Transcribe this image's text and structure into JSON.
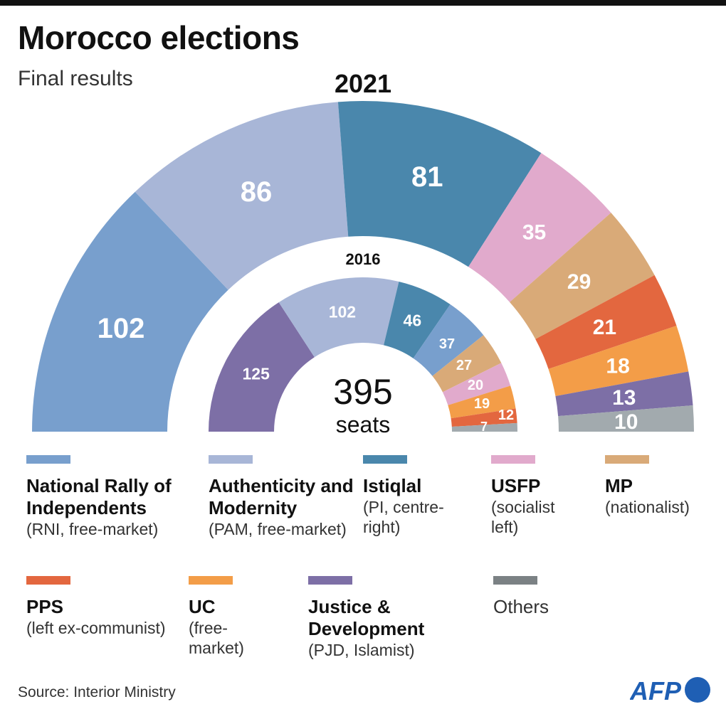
{
  "title": "Morocco elections",
  "subtitle": "Final results",
  "source": "Source: Interior Ministry",
  "logo_text": "AFP",
  "chart_data": {
    "type": "pie",
    "variant": "parliament-semicircle",
    "total_label_value": "395",
    "total_label_unit": "seats",
    "rings": [
      {
        "name": "2021",
        "slices": [
          {
            "party": "RNI",
            "value": 102,
            "color": "#789fcd"
          },
          {
            "party": "PAM",
            "value": 86,
            "color": "#a8b6d7"
          },
          {
            "party": "PI",
            "value": 81,
            "color": "#4a87ac"
          },
          {
            "party": "USFP",
            "value": 35,
            "color": "#e1aacc"
          },
          {
            "party": "MP",
            "value": 29,
            "color": "#d9aa78"
          },
          {
            "party": "PPS",
            "value": 21,
            "color": "#e3673f"
          },
          {
            "party": "UC",
            "value": 18,
            "color": "#f39d48"
          },
          {
            "party": "PJD",
            "value": 13,
            "color": "#7d6fa6"
          },
          {
            "party": "Others",
            "value": 10,
            "color": "#a2aaae"
          }
        ]
      },
      {
        "name": "2016",
        "slices": [
          {
            "party": "PJD",
            "value": 125,
            "color": "#7d6fa6"
          },
          {
            "party": "PAM",
            "value": 102,
            "color": "#a8b6d7"
          },
          {
            "party": "PI",
            "value": 46,
            "color": "#4a87ac"
          },
          {
            "party": "RNI",
            "value": 37,
            "color": "#789fcd"
          },
          {
            "party": "MP",
            "value": 27,
            "color": "#d9aa78"
          },
          {
            "party": "USFP",
            "value": 20,
            "color": "#e1aacc"
          },
          {
            "party": "UC",
            "value": 19,
            "color": "#f39d48"
          },
          {
            "party": "PPS",
            "value": 12,
            "color": "#e3673f"
          },
          {
            "party": "Others",
            "value": 7,
            "color": "#a2aaae"
          }
        ]
      }
    ],
    "legend": [
      {
        "name": "National Rally of Independents",
        "desc": "(RNI, free-market)",
        "color": "#789fcd"
      },
      {
        "name": "Authenticity and Modernity",
        "desc": "(PAM, free-market)",
        "color": "#a8b6d7"
      },
      {
        "name": "Istiqlal",
        "desc": "(PI, centre-right)",
        "color": "#4a87ac"
      },
      {
        "name": "USFP",
        "desc": "(socialist left)",
        "color": "#e1aacc"
      },
      {
        "name": "MP",
        "desc": "(nationalist)",
        "color": "#d9aa78"
      },
      {
        "name": "PPS",
        "desc": "(left ex-communist)",
        "color": "#e3673f"
      },
      {
        "name": "UC",
        "desc": "(free-market)",
        "color": "#f39d48"
      },
      {
        "name": "Justice & Development",
        "desc": "(PJD, Islamist)",
        "color": "#7d6fa6"
      },
      {
        "name": "Others",
        "desc": "",
        "color": "#7b8184"
      }
    ]
  }
}
